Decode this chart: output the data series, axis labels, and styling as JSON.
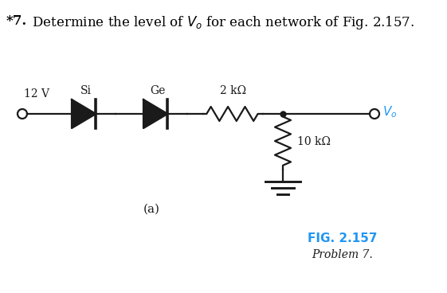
{
  "title_part1": "*7.",
  "title_part2": "  Determine the level of $V_o$ for each network of Fig. 2.157.",
  "title_fontsize": 12,
  "bg_color": "#ffffff",
  "label_12V": "12 V",
  "label_Si": "Si",
  "label_Ge": "Ge",
  "label_2k": "2 kΩ",
  "label_10k": "10 kΩ",
  "label_Vo": "$V_o$",
  "label_a": "(a)",
  "fig_label": "FIG. 2.157",
  "fig_sublabel": "Problem 7.",
  "fig_label_color": "#2196F3",
  "Vo_color": "#2196F3",
  "circuit_color": "#1a1a1a",
  "fig_width": 5.61,
  "fig_height": 3.68,
  "dpi": 100
}
